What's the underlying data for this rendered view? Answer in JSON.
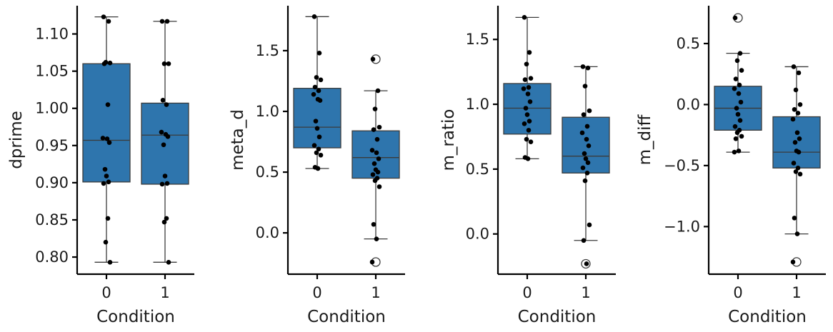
{
  "chart_data": [
    {
      "type": "box",
      "ylabel": "dprime",
      "xlabel": "Condition",
      "categories": [
        "0",
        "1"
      ],
      "ylim": [
        0.777,
        1.138
      ],
      "yticks": [
        0.8,
        0.85,
        0.9,
        0.95,
        1.0,
        1.05,
        1.1
      ],
      "ytick_labels": [
        "0.80",
        "0.85",
        "0.90",
        "0.95",
        "1.00",
        "1.05",
        "1.10"
      ],
      "box_color": "#2e75ad",
      "groups": [
        {
          "category": "0",
          "q1": 0.901,
          "median": 0.957,
          "q3": 1.06,
          "whisker_low": 0.793,
          "whisker_high": 1.123,
          "fliers": [],
          "points": [
            1.123,
            1.117,
            1.062,
            1.061,
            1.06,
            1.005,
            0.96,
            0.959,
            0.954,
            0.918,
            0.909,
            0.901,
            0.899,
            0.852,
            0.82,
            0.793
          ]
        },
        {
          "category": "1",
          "q1": 0.898,
          "median": 0.964,
          "q3": 1.007,
          "whisker_low": 0.793,
          "whisker_high": 1.117,
          "fliers": [],
          "points": [
            1.117,
            1.117,
            1.06,
            1.06,
            1.011,
            1.005,
            0.968,
            0.965,
            0.962,
            0.951,
            0.909,
            0.899,
            0.898,
            0.852,
            0.847,
            0.793
          ]
        }
      ]
    },
    {
      "type": "box",
      "ylabel": "meta_d",
      "xlabel": "Condition",
      "categories": [
        "0",
        "1"
      ],
      "ylim": [
        -0.34,
        1.87
      ],
      "yticks": [
        0.0,
        0.5,
        1.0,
        1.5
      ],
      "ytick_labels": [
        "0.0",
        "0.5",
        "1.0",
        "1.5"
      ],
      "box_color": "#2e75ad",
      "groups": [
        {
          "category": "0",
          "q1": 0.7,
          "median": 0.87,
          "q3": 1.19,
          "whisker_low": 0.53,
          "whisker_high": 1.78,
          "fliers": [],
          "points": [
            1.78,
            1.48,
            1.28,
            1.26,
            1.2,
            1.17,
            1.14,
            1.1,
            1.09,
            0.92,
            0.86,
            0.79,
            0.72,
            0.69,
            0.66,
            0.64,
            0.54,
            0.53
          ]
        },
        {
          "category": "1",
          "q1": 0.45,
          "median": 0.62,
          "q3": 0.84,
          "whisker_low": -0.05,
          "whisker_high": 1.17,
          "fliers": [
            1.43,
            -0.24
          ],
          "points": [
            1.43,
            1.17,
            1.02,
            0.87,
            0.85,
            0.77,
            0.68,
            0.66,
            0.61,
            0.57,
            0.52,
            0.5,
            0.48,
            0.45,
            0.43,
            0.38,
            0.07,
            -0.05,
            -0.24
          ]
        }
      ]
    },
    {
      "type": "box",
      "ylabel": "m_ratio",
      "xlabel": "Condition",
      "categories": [
        "0",
        "1"
      ],
      "ylim": [
        -0.31,
        1.76
      ],
      "yticks": [
        0.0,
        0.5,
        1.0,
        1.5
      ],
      "ytick_labels": [
        "0.0",
        "0.5",
        "1.0",
        "1.5"
      ],
      "box_color": "#2e75ad",
      "groups": [
        {
          "category": "0",
          "q1": 0.77,
          "median": 0.97,
          "q3": 1.16,
          "whisker_low": 0.58,
          "whisker_high": 1.67,
          "fliers": [],
          "points": [
            1.67,
            1.4,
            1.31,
            1.2,
            1.19,
            1.13,
            1.12,
            1.08,
            1.02,
            0.97,
            0.92,
            0.87,
            0.85,
            0.8,
            0.73,
            0.71,
            0.59,
            0.58
          ]
        },
        {
          "category": "1",
          "q1": 0.47,
          "median": 0.6,
          "q3": 0.9,
          "whisker_low": -0.05,
          "whisker_high": 1.29,
          "fliers": [
            -0.23
          ],
          "points": [
            1.29,
            1.28,
            1.14,
            0.95,
            0.92,
            0.83,
            0.78,
            0.73,
            0.68,
            0.62,
            0.58,
            0.55,
            0.51,
            0.47,
            0.41,
            0.07,
            -0.05,
            -0.23
          ]
        }
      ]
    },
    {
      "type": "box",
      "ylabel": "m_diff",
      "xlabel": "Condition",
      "categories": [
        "0",
        "1"
      ],
      "ylim": [
        -1.39,
        0.81
      ],
      "yticks": [
        -1.0,
        -0.5,
        0.0,
        0.5
      ],
      "ytick_labels": [
        "−1.0",
        "−0.5",
        "0.0",
        "0.5"
      ],
      "box_color": "#2e75ad",
      "groups": [
        {
          "category": "0",
          "q1": -0.21,
          "median": -0.03,
          "q3": 0.15,
          "whisker_low": -0.39,
          "whisker_high": 0.42,
          "fliers": [
            0.71
          ],
          "points": [
            0.71,
            0.42,
            0.36,
            0.28,
            0.21,
            0.16,
            0.13,
            0.09,
            0.02,
            -0.03,
            -0.08,
            -0.13,
            -0.18,
            -0.21,
            -0.23,
            -0.26,
            -0.28,
            -0.38,
            -0.39
          ]
        },
        {
          "category": "1",
          "q1": -0.52,
          "median": -0.39,
          "q3": -0.1,
          "whisker_low": -1.06,
          "whisker_high": 0.31,
          "fliers": [
            -1.29
          ],
          "points": [
            0.31,
            0.26,
            0.12,
            0.0,
            -0.04,
            -0.07,
            -0.12,
            -0.23,
            -0.28,
            -0.31,
            -0.38,
            -0.39,
            -0.48,
            -0.52,
            -0.55,
            -0.57,
            -0.93,
            -1.06,
            -1.29
          ]
        }
      ]
    }
  ]
}
